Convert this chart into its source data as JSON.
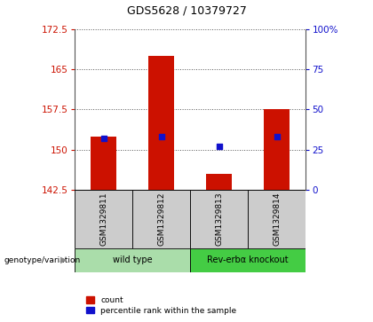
{
  "title": "GDS5628 / 10379727",
  "samples": [
    "GSM1329811",
    "GSM1329812",
    "GSM1329813",
    "GSM1329814"
  ],
  "bar_values": [
    152.5,
    167.5,
    145.5,
    157.5
  ],
  "percentile_values": [
    32,
    33,
    27,
    33
  ],
  "ymin": 142.5,
  "ymax": 172.5,
  "yticks_left": [
    142.5,
    150.0,
    157.5,
    165.0,
    172.5
  ],
  "ytick_labels_left": [
    "142.5",
    "150",
    "157.5",
    "165",
    "172.5"
  ],
  "yticks_right": [
    0,
    25,
    50,
    75,
    100
  ],
  "ytick_labels_right": [
    "0",
    "25",
    "50",
    "75",
    "100%"
  ],
  "bar_color": "#cc1100",
  "dot_color": "#1111cc",
  "bar_width": 0.45,
  "groups": [
    {
      "label": "wild type",
      "indices": [
        0,
        1
      ],
      "color": "#aaddaa"
    },
    {
      "label": "Rev-erbα knockout",
      "indices": [
        2,
        3
      ],
      "color": "#44cc44"
    }
  ],
  "ylabel_left_color": "#cc1100",
  "ylabel_right_color": "#1111cc",
  "background_color": "#ffffff",
  "plot_bg": "#ffffff",
  "sample_row_color": "#cccccc",
  "geno_label": "genotype/variation"
}
